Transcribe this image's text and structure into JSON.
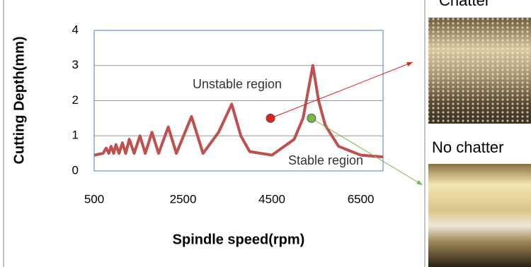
{
  "chart_data": {
    "type": "line",
    "x_label": "Spindle speed(rpm)",
    "y_label": "Cutting Depth(mm)",
    "x": [
      500,
      700,
      770,
      830,
      880,
      940,
      990,
      1060,
      1135,
      1210,
      1290,
      1400,
      1530,
      1650,
      1800,
      1950,
      2167,
      2350,
      2690,
      2950,
      3300,
      3595,
      3800,
      4000,
      4500,
      5000,
      5200,
      5421,
      5550,
      5700,
      6000,
      6500,
      7000
    ],
    "values": [
      0.45,
      0.5,
      0.65,
      0.5,
      0.7,
      0.5,
      0.75,
      0.5,
      0.8,
      0.5,
      0.9,
      0.5,
      1.0,
      0.5,
      1.1,
      0.5,
      1.25,
      0.5,
      1.55,
      0.5,
      1.1,
      1.9,
      1.0,
      0.55,
      0.45,
      0.9,
      1.5,
      3.0,
      2.0,
      1.3,
      0.7,
      0.45,
      0.4
    ],
    "color": "#c0504d",
    "points": {
      "x": [
        4468,
        5389
      ],
      "y": [
        1.5,
        1.5
      ],
      "colors": [
        "#e0221c",
        "#7ab648"
      ]
    },
    "annotations": [
      "Unstable region",
      "Stable region"
    ],
    "xlim": [
      500,
      7000
    ],
    "ylim": [
      0,
      4
    ],
    "xticks": [
      500,
      2500,
      4500,
      6500
    ],
    "yticks": [
      0,
      1,
      2,
      3,
      4
    ],
    "grid": true
  },
  "images": [
    {
      "label": "Chatter"
    },
    {
      "label": "No chatter"
    }
  ]
}
